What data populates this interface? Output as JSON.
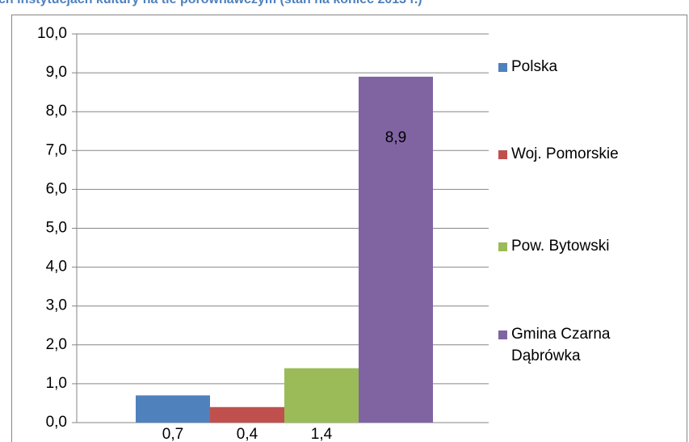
{
  "chart_data": {
    "type": "bar",
    "title": "ch instytucjach kultury na tle porównawczym (stan na koniec 2013 r.)",
    "ylim": [
      0,
      10
    ],
    "yticks": [
      {
        "value": 0,
        "label": "0,0"
      },
      {
        "value": 1,
        "label": "1,0"
      },
      {
        "value": 2,
        "label": "2,0"
      },
      {
        "value": 3,
        "label": "3,0"
      },
      {
        "value": 4,
        "label": "4,0"
      },
      {
        "value": 5,
        "label": "5,0"
      },
      {
        "value": 6,
        "label": "6,0"
      },
      {
        "value": 7,
        "label": "7,0"
      },
      {
        "value": 8,
        "label": "8,0"
      },
      {
        "value": 9,
        "label": "9,0"
      },
      {
        "value": 10,
        "label": "10,0"
      }
    ],
    "grid": true,
    "legend": "right",
    "series": [
      {
        "name": "Polska",
        "color": "#4f81bd",
        "values": [
          0.7
        ],
        "value_labels": [
          "0,7"
        ]
      },
      {
        "name": "Woj. Pomorskie",
        "color": "#c0504d",
        "values": [
          0.4
        ],
        "value_labels": [
          "0,4"
        ]
      },
      {
        "name": "Pow. Bytowski",
        "color": "#9bbb59",
        "values": [
          1.4
        ],
        "value_labels": [
          "1,4"
        ]
      },
      {
        "name": "Gmina Czarna Dąbrówka",
        "color": "#8064a2",
        "values": [
          8.9
        ],
        "value_labels": [
          "8,9"
        ]
      }
    ]
  }
}
